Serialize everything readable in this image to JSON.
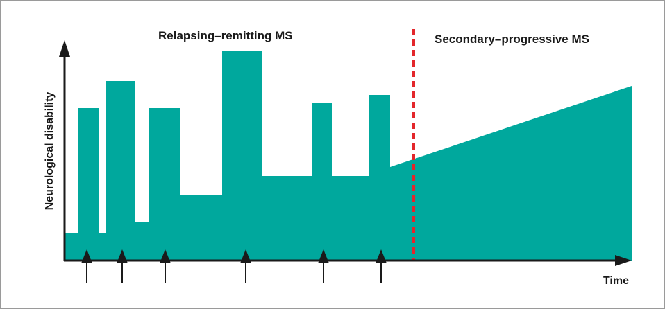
{
  "figure": {
    "phase_labels": {
      "relapsing": "Relapsing–remitting MS",
      "progressive": "Secondary–progressive MS"
    },
    "y_axis_label": "Neurological disability",
    "x_axis_label": "Time"
  },
  "colors": {
    "fill": "#00a89d",
    "axis": "#1a1a1a",
    "divider": "#e3262b",
    "frame": "#9a9a9a"
  },
  "relapse_markers": {
    "count": 6,
    "icon": "up-arrow-icon"
  }
}
